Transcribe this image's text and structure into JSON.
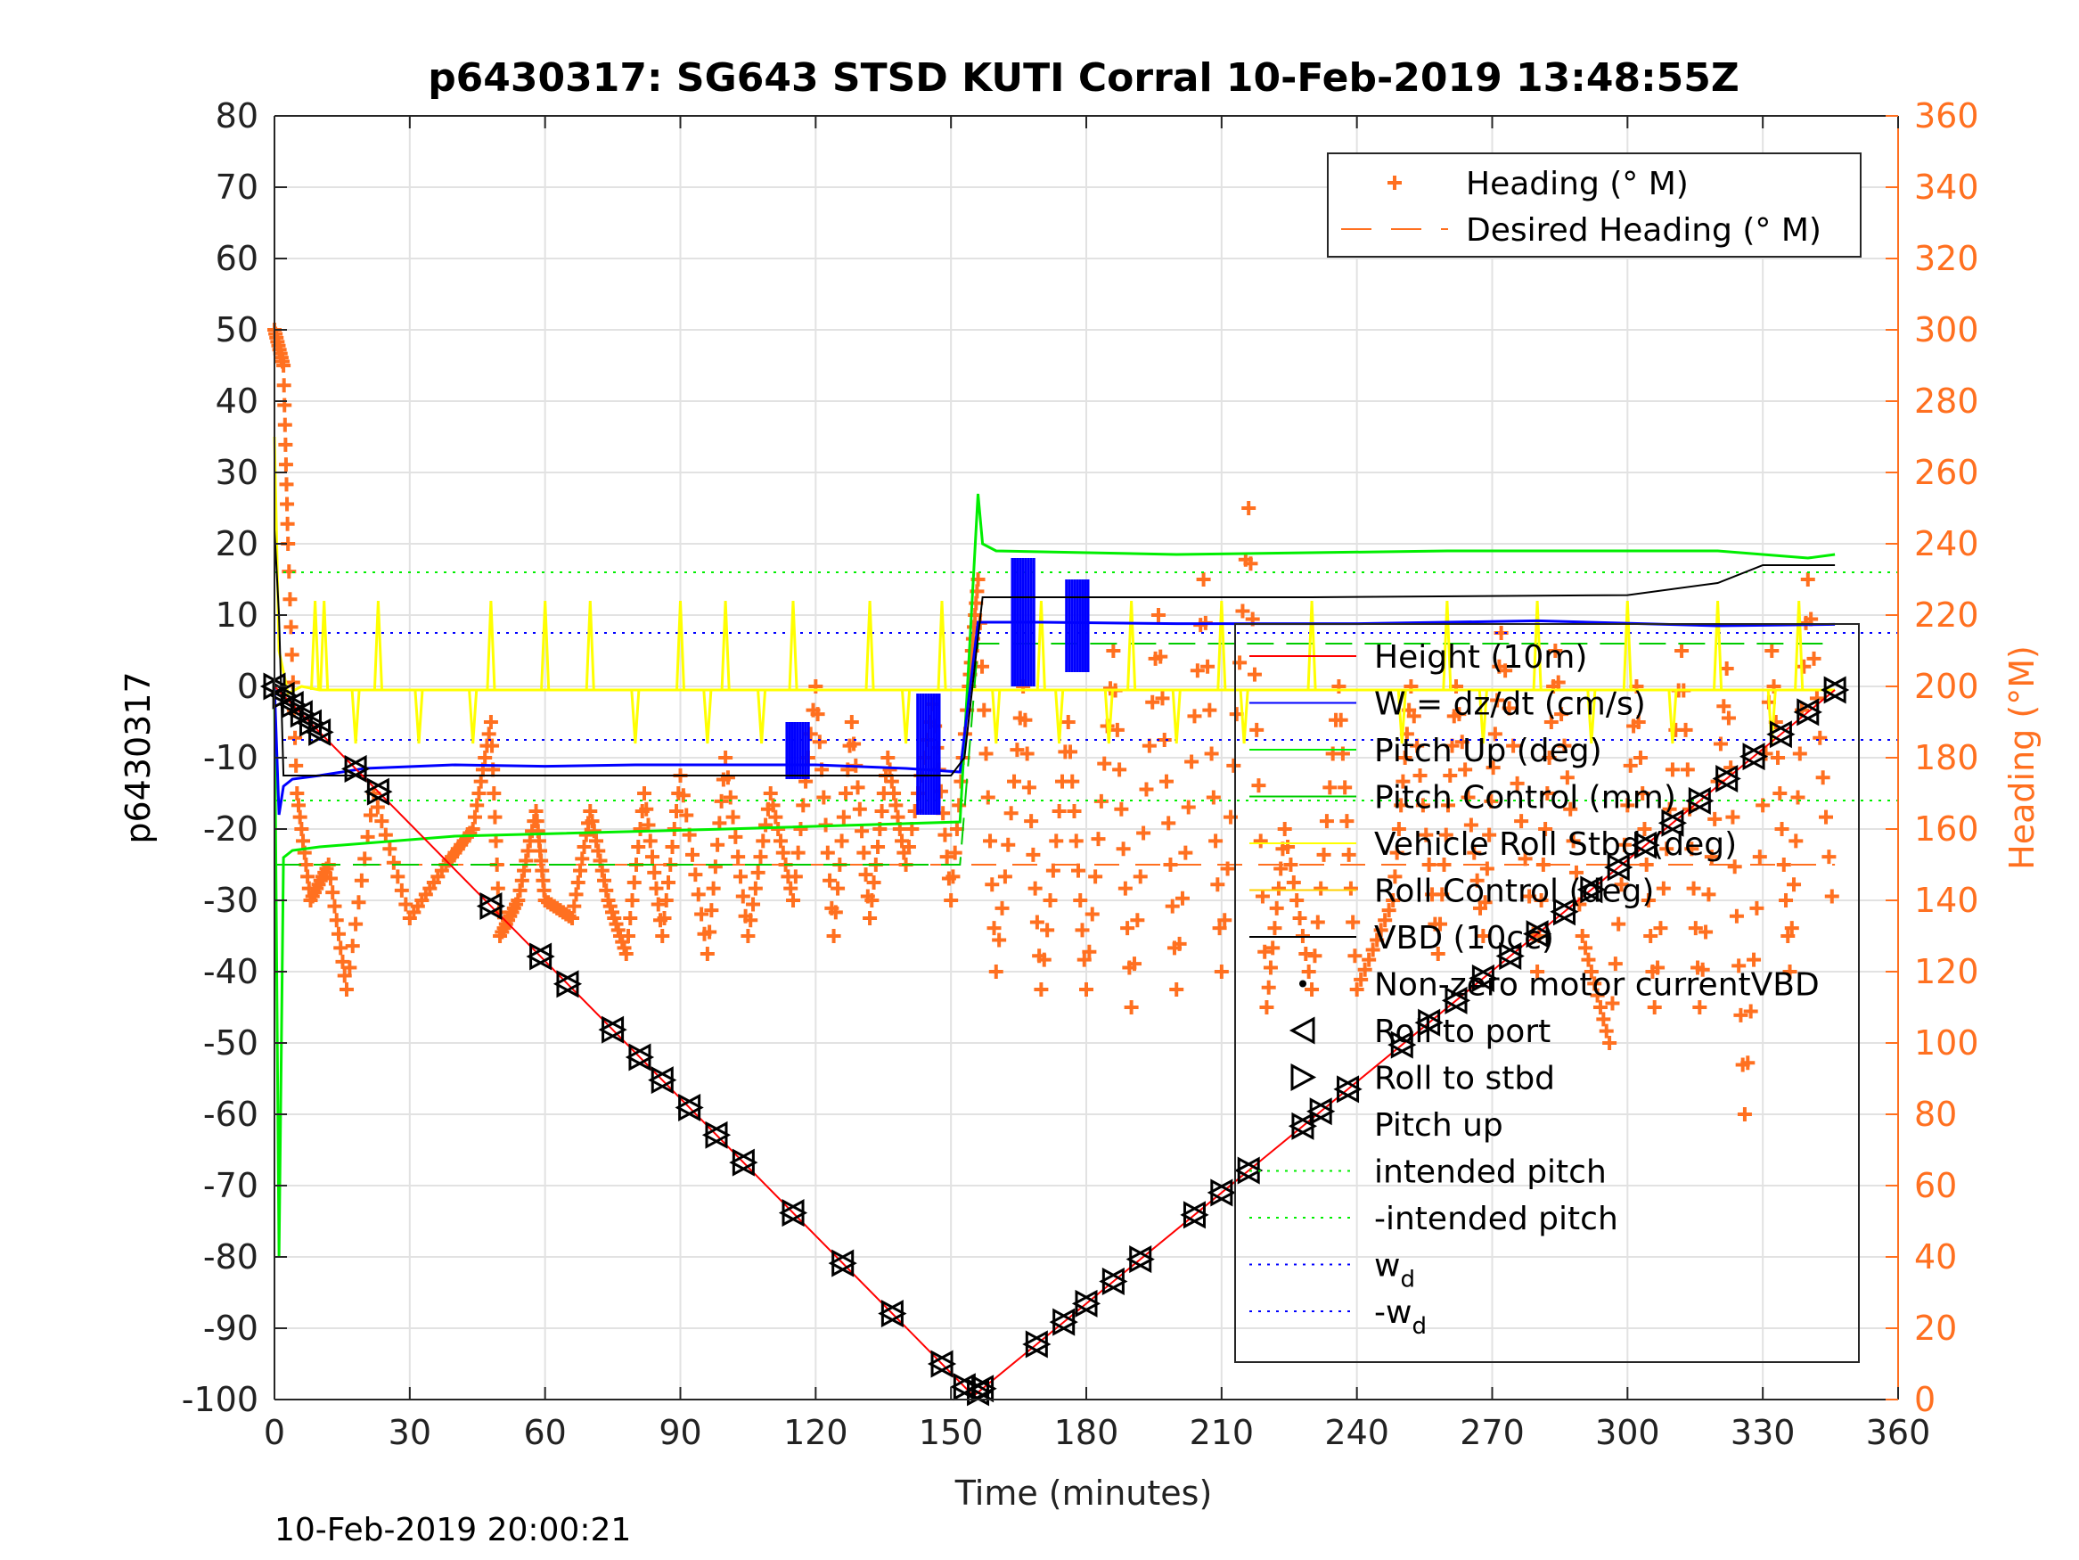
{
  "chart_data": {
    "type": "line",
    "title": "p6430317: SG643 STSD KUTI Corral 10-Feb-2019 13:48:55Z",
    "xlabel": "Time (minutes)",
    "ylabel_left": "p6430317",
    "ylabel_right": "Heading (°M)",
    "xlim": [
      0,
      360
    ],
    "ylim_left": [
      -100,
      80
    ],
    "ylim_right": [
      0,
      360
    ],
    "x_ticks": [
      0,
      30,
      60,
      90,
      120,
      150,
      180,
      210,
      240,
      270,
      300,
      330,
      360
    ],
    "y_left_ticks": [
      80,
      70,
      60,
      50,
      40,
      30,
      20,
      10,
      0,
      -10,
      -20,
      -30,
      -40,
      -50,
      -60,
      -70,
      -80,
      -90,
      -100
    ],
    "y_right_ticks": [
      360,
      340,
      320,
      300,
      280,
      260,
      240,
      220,
      200,
      180,
      160,
      140,
      120,
      100,
      80,
      60,
      40,
      20,
      0
    ],
    "grid": true,
    "colors": {
      "height": "#ff0000",
      "w": "#0000ff",
      "pitch": "#00ee00",
      "pitch_control": "#00cc00",
      "roll": "#ffff00",
      "roll_control": "#ffd000",
      "vbd": "#000000",
      "heading": "#ff7020",
      "right_axis": "#ff7020"
    },
    "legend_heading": [
      {
        "label": "Heading (° M)",
        "kind": "plus"
      },
      {
        "label": "Desired Heading (° M)",
        "kind": "dash"
      }
    ],
    "legend_main": [
      {
        "label": "Height (10m)",
        "kind": "line",
        "color": "#ff0000"
      },
      {
        "label": "W = dz/dt (cm/s)",
        "kind": "line",
        "color": "#0000ff"
      },
      {
        "label": "Pitch Up (deg)",
        "kind": "line",
        "color": "#00ee00"
      },
      {
        "label": "Pitch Control (mm)",
        "kind": "line",
        "color": "#00cc00"
      },
      {
        "label": "Vehicle Roll Stbd (deg)",
        "kind": "line",
        "color": "#ffff00"
      },
      {
        "label": "Roll Control (deg)",
        "kind": "line",
        "color": "#ffd000"
      },
      {
        "label": "VBD (10cc)",
        "kind": "line",
        "color": "#000000"
      },
      {
        "label": "Non-zero motor currentVBD",
        "kind": "dot",
        "color": "#000000"
      },
      {
        "label": "Roll to port",
        "kind": "tri-left",
        "color": "#000000"
      },
      {
        "label": "Roll to stbd",
        "kind": "tri-right",
        "color": "#000000"
      },
      {
        "label": "Pitch up",
        "kind": "none",
        "color": "#000000"
      },
      {
        "label": "intended pitch",
        "kind": "dotted",
        "color": "#00ee00"
      },
      {
        "label": "-intended pitch",
        "kind": "dotted",
        "color": "#00ee00"
      },
      {
        "label": "w",
        "sub": "d",
        "kind": "dotted",
        "color": "#0000ff"
      },
      {
        "label": "-w",
        "sub": "d",
        "kind": "dotted",
        "color": "#0000ff"
      }
    ],
    "series": {
      "height": {
        "x": [
          0,
          155,
          346
        ],
        "y": [
          0,
          -99.5,
          -0.5
        ]
      },
      "vbd": {
        "x": [
          0,
          1,
          2,
          150,
          153,
          157,
          230,
          300,
          320,
          330,
          346
        ],
        "y": [
          22,
          10,
          -12.5,
          -12.5,
          -10,
          12.5,
          12.5,
          12.8,
          14.5,
          17,
          17
        ]
      },
      "w": {
        "x": [
          0,
          1,
          2,
          4,
          10,
          20,
          40,
          60,
          80,
          100,
          120,
          140,
          152,
          156,
          170,
          200,
          240,
          280,
          320,
          346
        ],
        "y": [
          0,
          -18,
          -14,
          -13,
          -12.5,
          -11.5,
          -11,
          -11.2,
          -11,
          -11,
          -11,
          -11.5,
          -12,
          9,
          9,
          8.8,
          8.8,
          9.2,
          8.5,
          8.7
        ]
      },
      "w_bursts": [
        {
          "x": 116,
          "ymin": -13,
          "ymax": -5
        },
        {
          "x": 145,
          "ymin": -18,
          "ymax": -1
        },
        {
          "x": 166,
          "ymin": 0,
          "ymax": 18
        },
        {
          "x": 178,
          "ymin": 2,
          "ymax": 15
        }
      ],
      "pitch": {
        "x": [
          0,
          1,
          2,
          4,
          10,
          40,
          100,
          152,
          156,
          157,
          160,
          200,
          260,
          320,
          340,
          346
        ],
        "y": [
          0,
          -80,
          -24,
          -23,
          -22.5,
          -21,
          -20,
          -19,
          27,
          20,
          19,
          18.5,
          19,
          19,
          18,
          18.5
        ]
      },
      "pitch_control": {
        "x": [
          0,
          2,
          10,
          152,
          156,
          346
        ],
        "y": [
          -25,
          -25,
          -25,
          -25,
          6,
          6
        ]
      },
      "roll": {
        "x": [
          0,
          1,
          3,
          6,
          10,
          346
        ],
        "y": [
          35,
          5,
          -1,
          0,
          -0.5,
          -0.5
        ]
      },
      "roll_spikes_up": [
        9,
        11,
        23,
        48,
        60,
        70,
        90,
        100,
        115,
        132,
        148,
        170,
        190,
        210,
        230,
        260,
        280,
        300,
        320,
        338
      ],
      "roll_spikes_down": [
        18,
        32,
        44,
        80,
        96,
        108,
        140,
        160,
        174,
        185,
        200,
        215,
        250,
        268,
        292,
        310,
        332
      ],
      "heading": {
        "x": [
          0,
          2,
          3,
          5,
          8,
          12,
          16,
          22,
          30,
          38,
          44,
          48,
          50,
          54,
          58,
          60,
          66,
          70,
          74,
          78,
          82,
          86,
          90,
          96,
          100,
          105,
          110,
          115,
          120,
          124,
          128,
          132,
          136,
          140,
          146,
          150,
          154,
          156,
          160,
          166,
          170,
          176,
          180,
          186,
          190,
          196,
          200,
          206,
          210,
          216,
          220,
          224,
          230,
          236,
          240,
          248,
          252,
          258,
          262,
          268,
          272,
          280,
          284,
          290,
          296,
          302,
          306,
          312,
          316,
          322,
          326,
          332,
          336,
          340,
          346
        ],
        "y": [
          300,
          290,
          240,
          170,
          140,
          150,
          115,
          170,
          135,
          150,
          160,
          190,
          130,
          140,
          165,
          140,
          135,
          165,
          140,
          125,
          170,
          130,
          175,
          125,
          180,
          130,
          170,
          140,
          200,
          130,
          190,
          135,
          180,
          150,
          195,
          140,
          200,
          230,
          120,
          200,
          115,
          190,
          115,
          210,
          110,
          220,
          115,
          230,
          120,
          250,
          110,
          160,
          115,
          200,
          115,
          140,
          200,
          125,
          200,
          130,
          215,
          120,
          210,
          130,
          100,
          200,
          110,
          210,
          110,
          205,
          80,
          210,
          120,
          230,
          130
        ]
      },
      "desired_heading": {
        "x": [
          0,
          346
        ],
        "y": [
          150,
          150
        ]
      },
      "intended_pitch": 16,
      "w_d": 7.5,
      "roll_markers_x": [
        0,
        2,
        4,
        6,
        8,
        10,
        18,
        23,
        48,
        59,
        65,
        75,
        81,
        86,
        92,
        98,
        104,
        115,
        126,
        137,
        148,
        153,
        156,
        157,
        169,
        175,
        180,
        186,
        192,
        204,
        210,
        216,
        228,
        232,
        238,
        250,
        256,
        262,
        268,
        274,
        280,
        286,
        292,
        298,
        304,
        310,
        316,
        322,
        328,
        334,
        340,
        346
      ]
    }
  },
  "footer": {
    "timestamp": "10-Feb-2019 20:00:21"
  }
}
